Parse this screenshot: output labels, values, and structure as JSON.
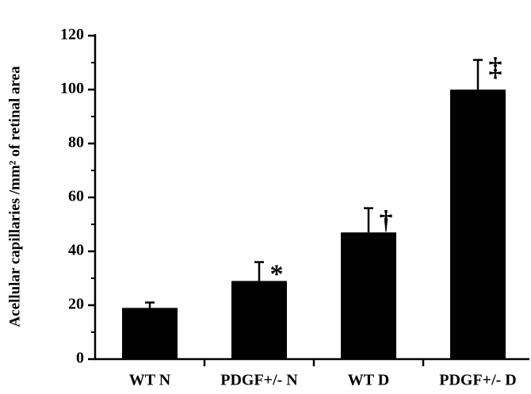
{
  "chart_data": {
    "type": "bar",
    "title": "",
    "xlabel": "",
    "ylabel": "Acellular capillaries /mm² of retinal area",
    "ylim": [
      0,
      120
    ],
    "yticks": [
      0,
      20,
      40,
      60,
      80,
      100,
      120
    ],
    "categories": [
      "WT N",
      "PDGF+/- N",
      "WT D",
      "PDGF+/- D"
    ],
    "values": [
      19,
      29,
      47,
      100
    ],
    "errors": [
      2,
      7,
      9,
      11
    ],
    "annotations": [
      "",
      "*",
      "†",
      "‡"
    ],
    "bar_color": "#000000",
    "grid": false,
    "legend": "none"
  }
}
